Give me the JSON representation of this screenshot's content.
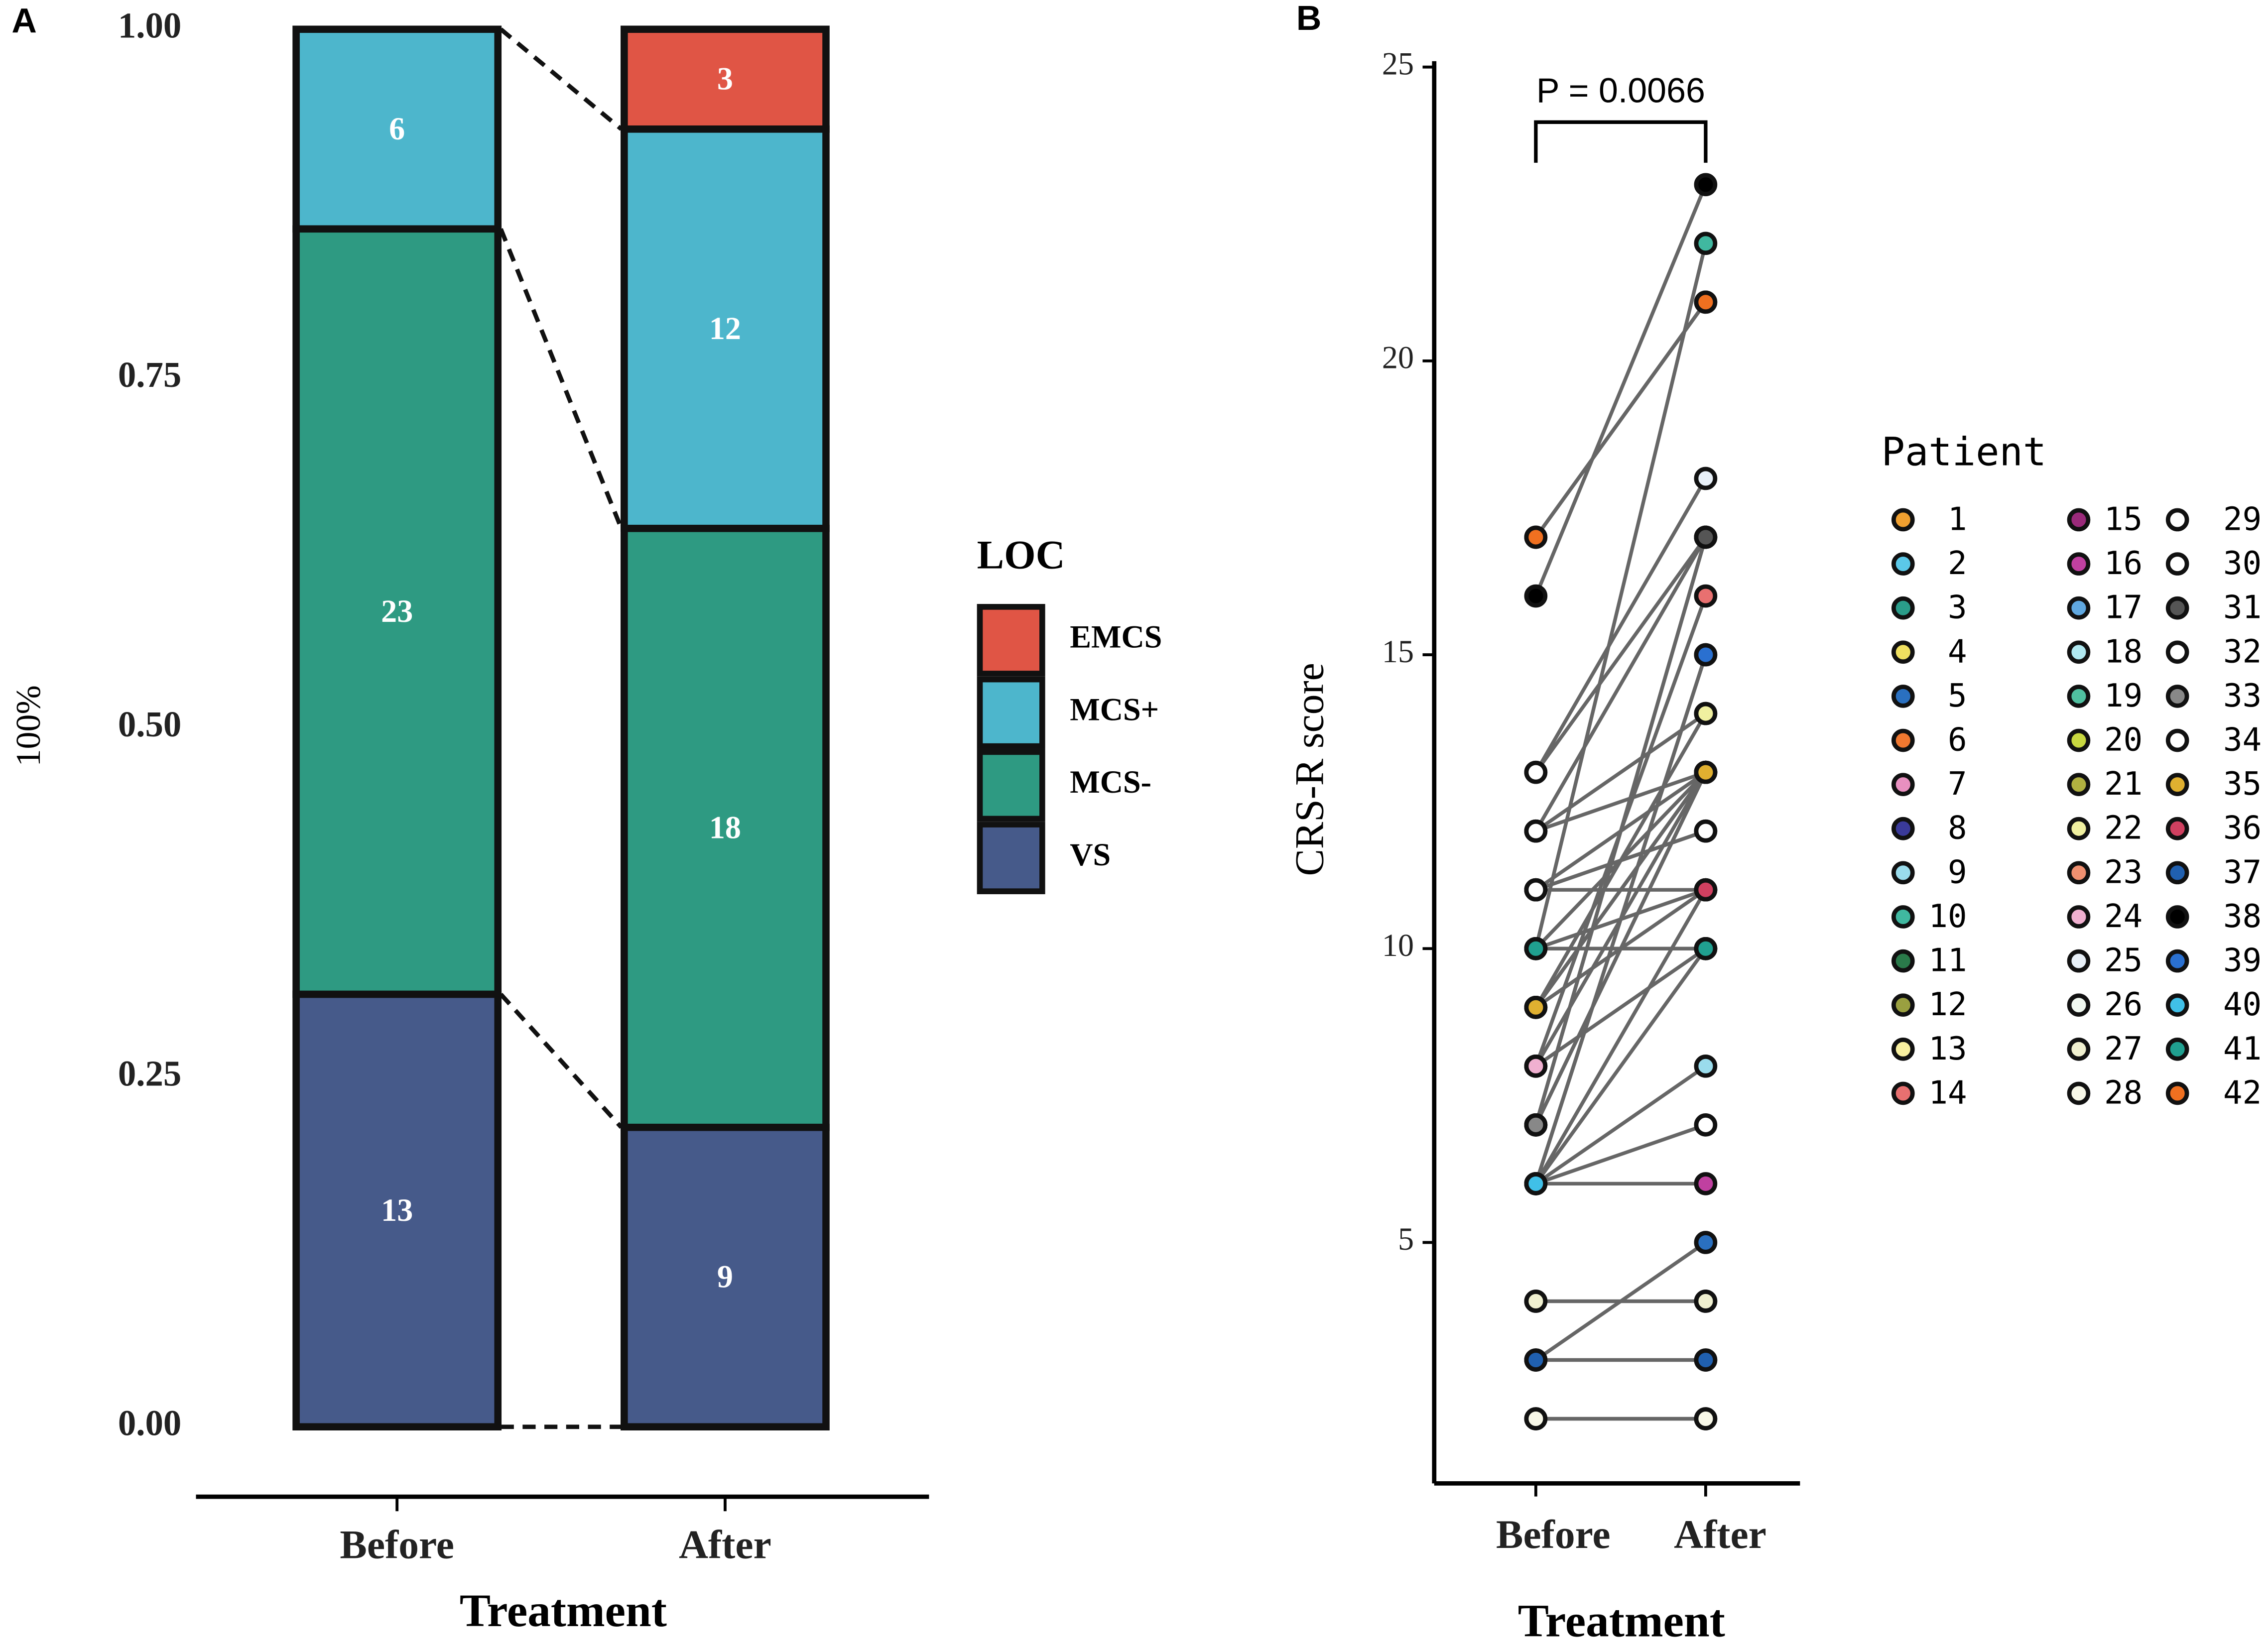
{
  "chart_data": [
    {
      "panel": "A",
      "type": "bar",
      "stacking": "percent",
      "categories": [
        "Before",
        "After"
      ],
      "series": [
        {
          "name": "VS",
          "color": "#465a8a",
          "values": [
            13,
            9
          ]
        },
        {
          "name": "MCS-",
          "color": "#2e9a82",
          "values": [
            23,
            18
          ]
        },
        {
          "name": "MCS+",
          "color": "#4db6cc",
          "values": [
            6,
            12
          ]
        },
        {
          "name": "EMCS",
          "color": "#e05545",
          "values": [
            0,
            3
          ]
        }
      ],
      "ylim": [
        -0.05,
        1.0
      ],
      "yticks": [
        {
          "value": 0,
          "label": "0.00"
        },
        {
          "value": 0.25,
          "label": "0.25"
        },
        {
          "value": 0.5,
          "label": "0.50"
        },
        {
          "value": 0.75,
          "label": "0.75"
        },
        {
          "value": 1,
          "label": "1.00"
        }
      ],
      "ylabel": "100%",
      "xlabel": "Treatment",
      "legend_title": "LOC",
      "grid": false
    },
    {
      "panel": "B",
      "type": "paired",
      "categories": [
        "Before",
        "After"
      ],
      "series": [
        {
          "name": "1",
          "color": "#f0a030",
          "values": [
            12,
            14
          ]
        },
        {
          "name": "2",
          "color": "#5bc8e8",
          "values": [
            6,
            15
          ]
        },
        {
          "name": "3",
          "color": "#2a9d8a",
          "values": [
            10,
            10
          ]
        },
        {
          "name": "4",
          "color": "#f0e060",
          "values": [
            4,
            4
          ]
        },
        {
          "name": "5",
          "color": "#2a70c0",
          "values": [
            3,
            5
          ]
        },
        {
          "name": "6",
          "color": "#f07830",
          "values": [
            17,
            21
          ]
        },
        {
          "name": "7",
          "color": "#e890c0",
          "values": [
            8,
            13
          ]
        },
        {
          "name": "8",
          "color": "#3a3a9a",
          "values": [
            3,
            3
          ]
        },
        {
          "name": "9",
          "color": "#9adcec",
          "values": [
            6,
            8
          ]
        },
        {
          "name": "10",
          "color": "#40b8a0",
          "values": [
            10,
            22
          ]
        },
        {
          "name": "11",
          "color": "#2a7a4a",
          "values": [
            7,
            13
          ]
        },
        {
          "name": "12",
          "color": "#9aa040",
          "values": [
            9,
            11
          ]
        },
        {
          "name": "13",
          "color": "#f8f0a0",
          "values": [
            2,
            2
          ]
        },
        {
          "name": "14",
          "color": "#e87070",
          "values": [
            8,
            16
          ]
        },
        {
          "name": "15",
          "color": "#9a2a7a",
          "values": [
            7,
            17
          ]
        },
        {
          "name": "16",
          "color": "#c040a0",
          "values": [
            6,
            6
          ]
        },
        {
          "name": "17",
          "color": "#60a8e0",
          "values": [
            6,
            11
          ]
        },
        {
          "name": "18",
          "color": "#b0e8f0",
          "values": [
            11,
            12
          ]
        },
        {
          "name": "19",
          "color": "#50c0a0",
          "values": [
            10,
            13
          ]
        },
        {
          "name": "20",
          "color": "#c8d840",
          "values": [
            9,
            13
          ]
        },
        {
          "name": "21",
          "color": "#b0b040",
          "values": [
            12,
            17
          ]
        },
        {
          "name": "22",
          "color": "#f0f0a0",
          "values": [
            9,
            14
          ]
        },
        {
          "name": "23",
          "color": "#f09070",
          "values": [
            11,
            11
          ]
        },
        {
          "name": "24",
          "color": "#f0b0d0",
          "values": [
            8,
            10
          ]
        },
        {
          "name": "25",
          "color": "#e8f0f8",
          "values": [
            13,
            18
          ]
        },
        {
          "name": "26",
          "color": "#f0f8f0",
          "values": [
            11,
            13
          ]
        },
        {
          "name": "27",
          "color": "#f0f0d0",
          "values": [
            4,
            4
          ]
        },
        {
          "name": "28",
          "color": "#f8f8e8",
          "values": [
            2,
            2
          ]
        },
        {
          "name": "29",
          "color": "#ffffff",
          "values": [
            13,
            17
          ]
        },
        {
          "name": "30",
          "color": "#ffffff",
          "values": [
            11,
            12
          ]
        },
        {
          "name": "31",
          "color": "#555555",
          "values": [
            7,
            17
          ]
        },
        {
          "name": "32",
          "color": "#ffffff",
          "values": [
            12,
            13
          ]
        },
        {
          "name": "33",
          "color": "#888888",
          "values": [
            7,
            13
          ]
        },
        {
          "name": "34",
          "color": "#ffffff",
          "values": [
            6,
            7
          ]
        },
        {
          "name": "35",
          "color": "#e0b030",
          "values": [
            9,
            13
          ]
        },
        {
          "name": "36",
          "color": "#d04060",
          "values": [
            10,
            11
          ]
        },
        {
          "name": "37",
          "color": "#2060b0",
          "values": [
            3,
            3
          ]
        },
        {
          "name": "38",
          "color": "#000000",
          "values": [
            16,
            23
          ]
        },
        {
          "name": "39",
          "color": "#2a70d0",
          "values": [
            6,
            15
          ]
        },
        {
          "name": "40",
          "color": "#40c0e8",
          "values": [
            6,
            10
          ]
        },
        {
          "name": "41",
          "color": "#20a090",
          "values": [
            10,
            10
          ]
        },
        {
          "name": "42",
          "color": "#f07020",
          "values": [
            17,
            21
          ]
        }
      ],
      "ylim": [
        0.9,
        25.1
      ],
      "yticks": [
        5,
        10,
        15,
        20,
        25
      ],
      "ylabel": "CRS-R score",
      "xlabel": "Treatment",
      "legend_title": "Patient",
      "annotation": "P = 0.0066",
      "grid": false
    }
  ]
}
